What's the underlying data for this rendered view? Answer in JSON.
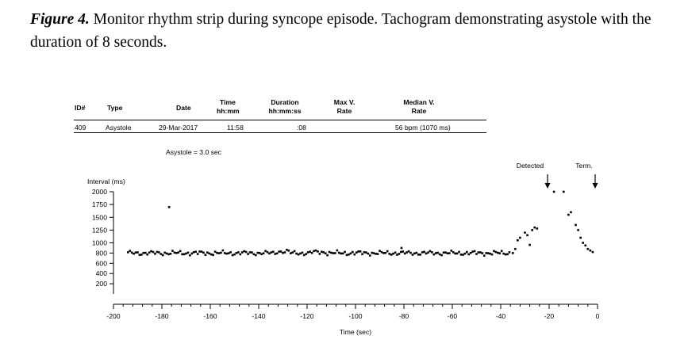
{
  "caption": {
    "figure_label": "Figure 4.",
    "text": " Monitor rhythm strip during syncope episode. Tachogram demonstrating asystole with the duration of 8 seconds."
  },
  "table": {
    "headers": [
      {
        "line1": "ID#",
        "line2": ""
      },
      {
        "line1": "Type",
        "line2": ""
      },
      {
        "line1": "Date",
        "line2": ""
      },
      {
        "line1": "Time",
        "line2": "hh:mm"
      },
      {
        "line1": "Duration",
        "line2": "hh:mm:ss"
      },
      {
        "line1": "Max V.",
        "line2": "Rate"
      },
      {
        "line1": "Median V.",
        "line2": "Rate"
      }
    ],
    "row": [
      "409",
      "Asystole",
      "29-Mar-2017",
      "11:58",
      ":08",
      "",
      "56 bpm (1070 ms)"
    ]
  },
  "asystole_note": "Asystole = 3.0 sec",
  "markers": {
    "detected": "Detected",
    "term": "Term."
  },
  "chart_data": {
    "type": "scatter",
    "ylabel": "Interval (ms)",
    "xlabel": "Time (sec)",
    "xlim": [
      -200,
      0
    ],
    "ylim": [
      0,
      2000
    ],
    "xticks": [
      -200,
      -180,
      -160,
      -140,
      -120,
      -100,
      -80,
      -60,
      -40,
      -20,
      0
    ],
    "yticks": [
      200,
      400,
      600,
      800,
      1000,
      1250,
      1500,
      1750,
      2000
    ],
    "ytick_labels": [
      "200",
      "400",
      "600",
      "800",
      "1000",
      "1250",
      "1500",
      "1750",
      "2000"
    ],
    "outliers": [
      [
        -177,
        1700
      ],
      [
        -81,
        900
      ]
    ],
    "tail_points": [
      [
        -35,
        800
      ],
      [
        -34,
        880
      ],
      [
        -33,
        1050
      ],
      [
        -32,
        1100
      ],
      [
        -30,
        1200
      ],
      [
        -29,
        1150
      ],
      [
        -28,
        960
      ],
      [
        -27,
        1250
      ],
      [
        -26,
        1300
      ],
      [
        -25,
        1280
      ],
      [
        -18,
        2000
      ],
      [
        -14,
        2000
      ],
      [
        -12,
        1550
      ],
      [
        -11,
        1600
      ],
      [
        -9,
        1350
      ],
      [
        -8,
        1250
      ],
      [
        -7,
        1100
      ],
      [
        -6,
        1000
      ],
      [
        -5,
        950
      ],
      [
        -4,
        880
      ],
      [
        -3,
        850
      ],
      [
        -2,
        820
      ]
    ],
    "baseline": {
      "x_start": -194,
      "x_end": -36,
      "mean": 800,
      "bumps": [
        [
          -130,
          850
        ],
        [
          -115,
          830
        ]
      ]
    },
    "detected_x": -21,
    "term_x": -1
  }
}
